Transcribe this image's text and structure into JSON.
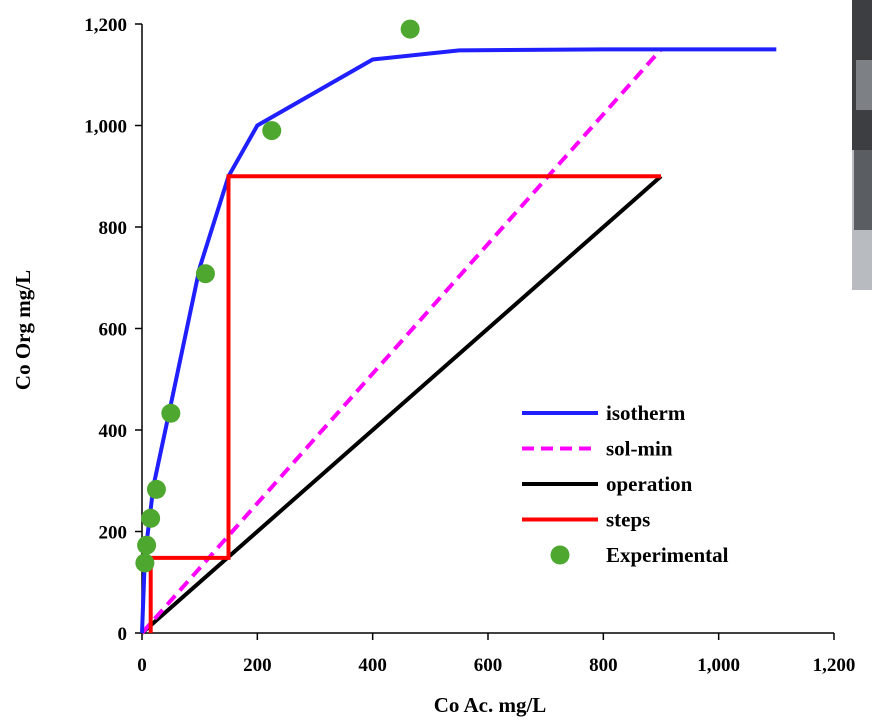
{
  "chart_data": {
    "type": "line",
    "xlabel": "Co Ac. mg/L",
    "ylabel": "Co Org mg/L",
    "xlim": [
      0,
      1200
    ],
    "ylim": [
      0,
      1200
    ],
    "x_ticks": [
      0,
      200,
      400,
      600,
      800,
      1000,
      1200
    ],
    "y_ticks": [
      0,
      200,
      400,
      600,
      800,
      1000,
      1200
    ],
    "x_tick_labels": [
      "0",
      "200",
      "400",
      "600",
      "800",
      "1,000",
      "1,200"
    ],
    "y_tick_labels": [
      "0",
      "200",
      "400",
      "600",
      "800",
      "1,000",
      "1,200"
    ],
    "grid": false,
    "legend_position": "bottom-right",
    "series": [
      {
        "name": "isotherm",
        "kind": "line",
        "color": "#1f1fff",
        "dash": "solid",
        "points": [
          [
            0,
            0
          ],
          [
            5,
            150
          ],
          [
            20,
            290
          ],
          [
            50,
            450
          ],
          [
            100,
            720
          ],
          [
            150,
            900
          ],
          [
            200,
            1000
          ],
          [
            400,
            1130
          ],
          [
            550,
            1148
          ],
          [
            800,
            1150
          ],
          [
            1100,
            1150
          ]
        ]
      },
      {
        "name": "sol-min",
        "kind": "line",
        "color": "#ff00ff",
        "dash": "dashed",
        "points": [
          [
            0,
            0
          ],
          [
            900,
            1150
          ]
        ]
      },
      {
        "name": "operation",
        "kind": "line",
        "color": "#000000",
        "dash": "solid",
        "points": [
          [
            0,
            0
          ],
          [
            900,
            900
          ]
        ]
      },
      {
        "name": "steps",
        "kind": "line",
        "color": "#ff0000",
        "dash": "solid",
        "points": [
          [
            900,
            900
          ],
          [
            150,
            900
          ],
          [
            150,
            148
          ],
          [
            15,
            148
          ],
          [
            15,
            0
          ]
        ]
      },
      {
        "name": "Experimental",
        "kind": "scatter",
        "color": "#4ea72e",
        "points": [
          [
            5,
            138
          ],
          [
            8,
            173
          ],
          [
            15,
            226
          ],
          [
            25,
            283
          ],
          [
            50,
            433
          ],
          [
            110,
            708
          ],
          [
            225,
            990
          ],
          [
            465,
            1190
          ]
        ]
      }
    ]
  },
  "background_photo": {
    "colors": [
      "#3c3e42",
      "#7d8185",
      "#b8bcc0",
      "#5a5e62"
    ]
  }
}
